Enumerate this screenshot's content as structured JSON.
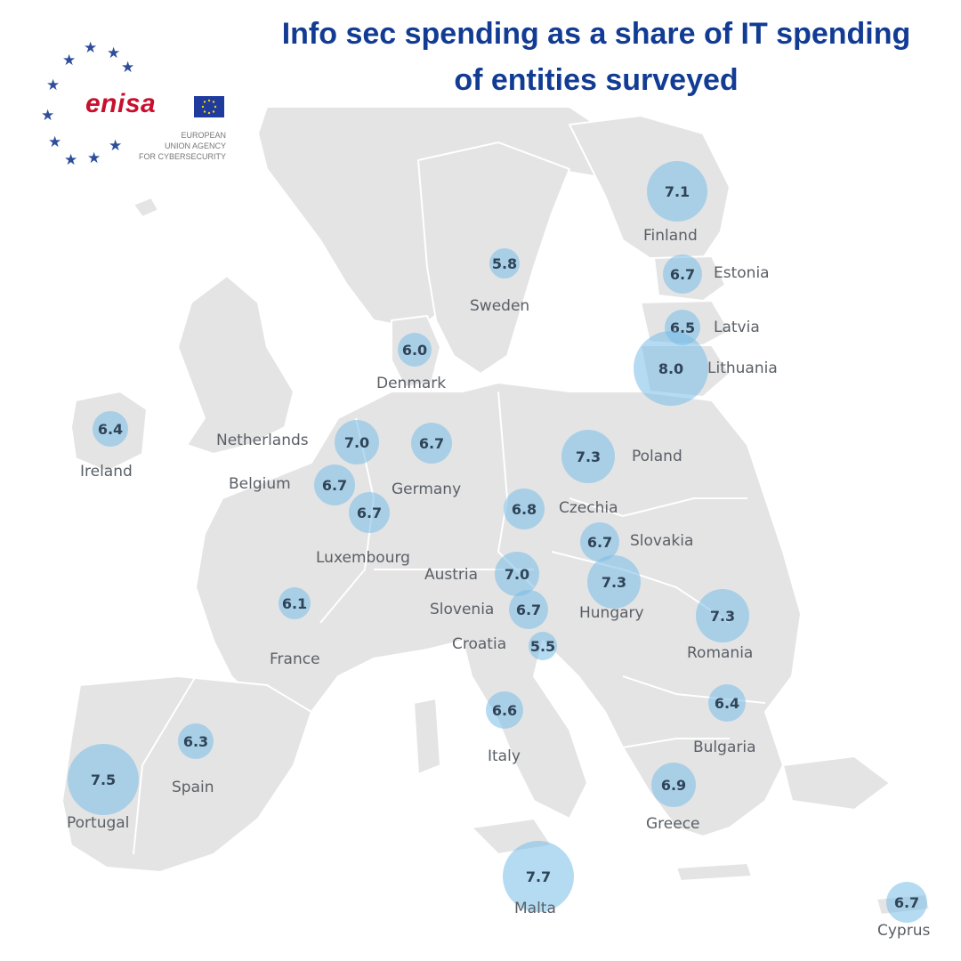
{
  "title": {
    "line1": "Info sec spending as a share of IT spending",
    "line2": "of entities surveyed"
  },
  "logo": {
    "wordmark": "enisa",
    "sub1": "EUROPEAN",
    "sub2": "UNION AGENCY",
    "sub3": "FOR CYBERSECURITY",
    "flag_color": "#1f3b9e",
    "word_color": "#c8102e",
    "icon": "eu-star-circle-icon"
  },
  "colors": {
    "land": "#e4e4e4",
    "border": "#ffffff",
    "bubble": "#7bbee6",
    "title": "#123c94"
  },
  "countries": [
    {
      "id": "finland",
      "name": "Finland",
      "value": "7.1"
    },
    {
      "id": "estonia",
      "name": "Estonia",
      "value": "6.7"
    },
    {
      "id": "latvia",
      "name": "Latvia",
      "value": "6.5"
    },
    {
      "id": "lithuania",
      "name": "Lithuania",
      "value": "8.0"
    },
    {
      "id": "sweden",
      "name": "Sweden",
      "value": "5.8"
    },
    {
      "id": "denmark",
      "name": "Denmark",
      "value": "6.0"
    },
    {
      "id": "ireland",
      "name": "Ireland",
      "value": "6.4"
    },
    {
      "id": "netherlands",
      "name": "Netherlands",
      "value": "7.0"
    },
    {
      "id": "germany",
      "name": "Germany",
      "value": "6.7"
    },
    {
      "id": "belgium",
      "name": "Belgium",
      "value": "6.7"
    },
    {
      "id": "luxembourg",
      "name": "Luxembourg",
      "value": "6.7"
    },
    {
      "id": "poland",
      "name": "Poland",
      "value": "7.3"
    },
    {
      "id": "czechia",
      "name": "Czechia",
      "value": "6.8"
    },
    {
      "id": "slovakia",
      "name": "Slovakia",
      "value": "6.7"
    },
    {
      "id": "austria",
      "name": "Austria",
      "value": "7.0"
    },
    {
      "id": "hungary",
      "name": "Hungary",
      "value": "7.3"
    },
    {
      "id": "slovenia",
      "name": "Slovenia",
      "value": "6.7"
    },
    {
      "id": "croatia",
      "name": "Croatia",
      "value": "5.5"
    },
    {
      "id": "france",
      "name": "France",
      "value": "6.1"
    },
    {
      "id": "romania",
      "name": "Romania",
      "value": "7.3"
    },
    {
      "id": "bulgaria",
      "name": "Bulgaria",
      "value": "6.4"
    },
    {
      "id": "italy",
      "name": "Italy",
      "value": "6.6"
    },
    {
      "id": "spain",
      "name": "Spain",
      "value": "6.3"
    },
    {
      "id": "portugal",
      "name": "Portugal",
      "value": "7.5"
    },
    {
      "id": "greece",
      "name": "Greece",
      "value": "6.9"
    },
    {
      "id": "malta",
      "name": "Malta",
      "value": "7.7"
    },
    {
      "id": "cyprus",
      "name": "Cyprus",
      "value": "6.7"
    }
  ]
}
